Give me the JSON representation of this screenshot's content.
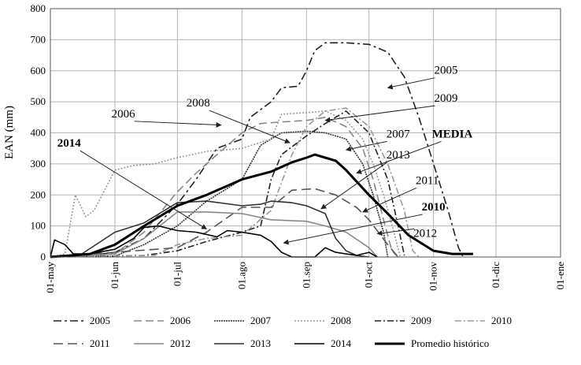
{
  "chart_data": {
    "type": "line",
    "title": "",
    "ylabel": "EAN (mm)",
    "xlabel": "",
    "ylim": [
      0,
      800
    ],
    "yticks": [
      0,
      100,
      200,
      300,
      400,
      500,
      600,
      700,
      800
    ],
    "xlim": [
      "2014-05-01",
      "2015-01-01"
    ],
    "xticks": [
      "01-may",
      "01-jun",
      "01-jul",
      "01.ago",
      "01.sep",
      "01-oct",
      "01-nov",
      "01-dic",
      "01-ene"
    ],
    "grid": true,
    "legend_position": "bottom",
    "series": [
      {
        "name": "2005",
        "color": "#222222",
        "dash": "10,4,3,4",
        "points": [
          [
            "2014-05-01",
            2
          ],
          [
            "2014-05-20",
            5
          ],
          [
            "2014-06-01",
            15
          ],
          [
            "2014-06-15",
            60
          ],
          [
            "2014-07-01",
            170
          ],
          [
            "2014-07-10",
            250
          ],
          [
            "2014-07-20",
            350
          ],
          [
            "2014-08-01",
            380
          ],
          [
            "2014-08-05",
            450
          ],
          [
            "2014-08-15",
            500
          ],
          [
            "2014-08-20",
            545
          ],
          [
            "2014-08-28",
            550
          ],
          [
            "2014-09-01",
            600
          ],
          [
            "2014-09-05",
            665
          ],
          [
            "2014-09-10",
            690
          ],
          [
            "2014-09-20",
            690
          ],
          [
            "2014-10-01",
            685
          ],
          [
            "2014-10-10",
            660
          ],
          [
            "2014-10-18",
            580
          ],
          [
            "2014-10-25",
            450
          ],
          [
            "2014-11-01",
            300
          ],
          [
            "2014-11-08",
            150
          ],
          [
            "2014-11-13",
            30
          ],
          [
            "2014-11-15",
            3
          ]
        ]
      },
      {
        "name": "2006",
        "color": "#888888",
        "dash": "10,5",
        "points": [
          [
            "2014-05-01",
            2
          ],
          [
            "2014-05-20",
            3
          ],
          [
            "2014-06-01",
            10
          ],
          [
            "2014-06-15",
            80
          ],
          [
            "2014-07-01",
            210
          ],
          [
            "2014-07-10",
            270
          ],
          [
            "2014-07-20",
            330
          ],
          [
            "2014-08-01",
            400
          ],
          [
            "2014-08-10",
            430
          ],
          [
            "2014-08-20",
            435
          ],
          [
            "2014-09-01",
            440
          ],
          [
            "2014-09-10",
            450
          ],
          [
            "2014-09-20",
            420
          ],
          [
            "2014-09-28",
            350
          ],
          [
            "2014-10-03",
            250
          ],
          [
            "2014-10-08",
            120
          ],
          [
            "2014-10-12",
            20
          ],
          [
            "2014-10-15",
            0
          ]
        ]
      },
      {
        "name": "2007",
        "color": "#333333",
        "dash": "2,1",
        "points": [
          [
            "2014-05-01",
            0
          ],
          [
            "2014-06-01",
            3
          ],
          [
            "2014-06-15",
            40
          ],
          [
            "2014-07-01",
            100
          ],
          [
            "2014-07-15",
            180
          ],
          [
            "2014-08-01",
            250
          ],
          [
            "2014-08-10",
            360
          ],
          [
            "2014-08-20",
            400
          ],
          [
            "2014-09-01",
            405
          ],
          [
            "2014-09-10",
            400
          ],
          [
            "2014-09-20",
            380
          ],
          [
            "2014-09-28",
            300
          ],
          [
            "2014-10-03",
            200
          ],
          [
            "2014-10-08",
            80
          ],
          [
            "2014-10-10",
            0
          ]
        ]
      },
      {
        "name": "2008",
        "color": "#999999",
        "dash": "2,2",
        "points": [
          [
            "2014-05-01",
            0
          ],
          [
            "2014-05-08",
            10
          ],
          [
            "2014-05-13",
            200
          ],
          [
            "2014-05-18",
            130
          ],
          [
            "2014-05-22",
            150
          ],
          [
            "2014-06-01",
            280
          ],
          [
            "2014-06-10",
            295
          ],
          [
            "2014-06-20",
            300
          ],
          [
            "2014-07-01",
            320
          ],
          [
            "2014-07-15",
            340
          ],
          [
            "2014-08-01",
            350
          ],
          [
            "2014-08-15",
            380
          ],
          [
            "2014-08-20",
            460
          ],
          [
            "2014-09-01",
            465
          ],
          [
            "2014-09-10",
            470
          ],
          [
            "2014-09-20",
            440
          ],
          [
            "2014-09-28",
            380
          ],
          [
            "2014-10-03",
            300
          ],
          [
            "2014-10-08",
            200
          ],
          [
            "2014-10-13",
            80
          ],
          [
            "2014-10-16",
            0
          ]
        ]
      },
      {
        "name": "2009",
        "color": "#222222",
        "dash": "8,3,2,3",
        "points": [
          [
            "2014-05-01",
            0
          ],
          [
            "2014-06-15",
            5
          ],
          [
            "2014-07-01",
            20
          ],
          [
            "2014-07-15",
            50
          ],
          [
            "2014-08-01",
            80
          ],
          [
            "2014-08-10",
            100
          ],
          [
            "2014-08-15",
            250
          ],
          [
            "2014-08-20",
            330
          ],
          [
            "2014-09-01",
            390
          ],
          [
            "2014-09-10",
            430
          ],
          [
            "2014-09-20",
            470
          ],
          [
            "2014-10-01",
            400
          ],
          [
            "2014-10-10",
            250
          ],
          [
            "2014-10-15",
            100
          ],
          [
            "2014-10-18",
            5
          ]
        ]
      },
      {
        "name": "2010",
        "color": "#999999",
        "dash": "8,3,2,3",
        "points": [
          [
            "2014-05-01",
            0
          ],
          [
            "2014-06-20",
            5
          ],
          [
            "2014-07-01",
            40
          ],
          [
            "2014-07-15",
            60
          ],
          [
            "2014-08-01",
            70
          ],
          [
            "2014-08-15",
            150
          ],
          [
            "2014-08-25",
            330
          ],
          [
            "2014-09-01",
            420
          ],
          [
            "2014-09-10",
            470
          ],
          [
            "2014-09-20",
            480
          ],
          [
            "2014-10-01",
            420
          ],
          [
            "2014-10-10",
            300
          ],
          [
            "2014-10-18",
            150
          ],
          [
            "2014-10-22",
            20
          ],
          [
            "2014-10-25",
            0
          ]
        ]
      },
      {
        "name": "2011",
        "color": "#555555",
        "dash": "12,6",
        "points": [
          [
            "2014-05-01",
            0
          ],
          [
            "2014-07-01",
            30
          ],
          [
            "2014-07-15",
            80
          ],
          [
            "2014-08-01",
            160
          ],
          [
            "2014-08-15",
            160
          ],
          [
            "2014-08-25",
            215
          ],
          [
            "2014-09-05",
            220
          ],
          [
            "2014-09-15",
            200
          ],
          [
            "2014-09-25",
            160
          ],
          [
            "2014-10-01",
            120
          ],
          [
            "2014-10-10",
            40
          ],
          [
            "2014-10-15",
            0
          ]
        ]
      },
      {
        "name": "2012",
        "color": "#888888",
        "dash": "",
        "points": [
          [
            "2014-05-01",
            0
          ],
          [
            "2014-06-01",
            10
          ],
          [
            "2014-06-15",
            60
          ],
          [
            "2014-07-01",
            145
          ],
          [
            "2014-07-15",
            145
          ],
          [
            "2014-08-01",
            140
          ],
          [
            "2014-08-15",
            120
          ],
          [
            "2014-09-01",
            115
          ],
          [
            "2014-09-10",
            100
          ],
          [
            "2014-09-20",
            80
          ],
          [
            "2014-10-01",
            30
          ],
          [
            "2014-10-05",
            0
          ]
        ]
      },
      {
        "name": "2013",
        "color": "#333333",
        "dash": "",
        "points": [
          [
            "2014-05-01",
            0
          ],
          [
            "2014-05-15",
            5
          ],
          [
            "2014-06-01",
            80
          ],
          [
            "2014-06-15",
            110
          ],
          [
            "2014-07-01",
            175
          ],
          [
            "2014-07-15",
            180
          ],
          [
            "2014-08-01",
            165
          ],
          [
            "2014-08-10",
            170
          ],
          [
            "2014-08-15",
            180
          ],
          [
            "2014-08-25",
            175
          ],
          [
            "2014-09-01",
            165
          ],
          [
            "2014-09-10",
            140
          ],
          [
            "2014-09-15",
            60
          ],
          [
            "2014-09-20",
            20
          ],
          [
            "2014-09-25",
            5
          ],
          [
            "2014-10-01",
            0
          ]
        ]
      },
      {
        "name": "2014",
        "color": "#000000",
        "dash": "",
        "points": [
          [
            "2014-05-01",
            0
          ],
          [
            "2014-05-03",
            55
          ],
          [
            "2014-05-08",
            40
          ],
          [
            "2014-05-12",
            10
          ],
          [
            "2014-05-20",
            10
          ],
          [
            "2014-06-01",
            25
          ],
          [
            "2014-06-10",
            60
          ],
          [
            "2014-06-15",
            95
          ],
          [
            "2014-06-22",
            100
          ],
          [
            "2014-07-01",
            85
          ],
          [
            "2014-07-10",
            80
          ],
          [
            "2014-07-20",
            65
          ],
          [
            "2014-07-25",
            85
          ],
          [
            "2014-08-01",
            80
          ],
          [
            "2014-08-10",
            70
          ],
          [
            "2014-08-15",
            50
          ],
          [
            "2014-08-20",
            15
          ],
          [
            "2014-08-25",
            0
          ],
          [
            "2014-09-05",
            0
          ],
          [
            "2014-09-10",
            30
          ],
          [
            "2014-09-15",
            15
          ],
          [
            "2014-09-25",
            5
          ],
          [
            "2014-10-01",
            15
          ],
          [
            "2014-10-05",
            0
          ]
        ]
      },
      {
        "name": "Promedio histórico",
        "color": "#000000",
        "dash": "",
        "bold": true,
        "points": [
          [
            "2014-05-01",
            0
          ],
          [
            "2014-05-20",
            10
          ],
          [
            "2014-06-01",
            40
          ],
          [
            "2014-06-15",
            100
          ],
          [
            "2014-07-01",
            165
          ],
          [
            "2014-07-15",
            200
          ],
          [
            "2014-08-01",
            250
          ],
          [
            "2014-08-15",
            275
          ],
          [
            "2014-08-25",
            305
          ],
          [
            "2014-09-01",
            320
          ],
          [
            "2014-09-05",
            330
          ],
          [
            "2014-09-10",
            320
          ],
          [
            "2014-09-15",
            310
          ],
          [
            "2014-09-20",
            280
          ],
          [
            "2014-10-01",
            200
          ],
          [
            "2014-10-10",
            140
          ],
          [
            "2014-10-20",
            70
          ],
          [
            "2014-11-01",
            20
          ],
          [
            "2014-11-10",
            10
          ],
          [
            "2014-11-20",
            10
          ]
        ]
      }
    ],
    "annotations": [
      {
        "text": "2005",
        "bold": false,
        "label_at": [
          "2014-11-07",
          590
        ],
        "arrow_to": [
          "2014-10-10",
          545
        ]
      },
      {
        "text": "2009",
        "bold": false,
        "label_at": [
          "2014-11-07",
          500
        ],
        "arrow_to": [
          "2014-09-10",
          440
        ]
      },
      {
        "text": "2008",
        "bold": false,
        "label_at": [
          "2014-07-11",
          485
        ],
        "arrow_to": [
          "2014-08-24",
          368
        ]
      },
      {
        "text": "2006",
        "bold": false,
        "label_at": [
          "2014-06-05",
          450
        ],
        "arrow_to": [
          "2014-07-22",
          425
        ]
      },
      {
        "text": "2007",
        "bold": false,
        "label_at": [
          "2014-10-15",
          385
        ],
        "arrow_to": [
          "2014-09-20",
          345
        ]
      },
      {
        "text": "MEDIA",
        "bold": true,
        "label_at": [
          "2014-11-10",
          385
        ],
        "arrow_to": [
          "2014-09-25",
          270
        ]
      },
      {
        "text": "2014",
        "bold": true,
        "label_at": [
          "2014-05-10",
          355
        ],
        "arrow_to": [
          "2014-07-15",
          90
        ]
      },
      {
        "text": "2013",
        "bold": false,
        "label_at": [
          "2014-10-15",
          318
        ],
        "arrow_to": [
          "2014-09-08",
          155
        ]
      },
      {
        "text": "2011",
        "bold": false,
        "label_at": [
          "2014-10-29",
          235
        ],
        "arrow_to": [
          "2014-09-28",
          145
        ]
      },
      {
        "text": "2010",
        "bold": true,
        "label_at": [
          "2014-11-01",
          150
        ],
        "arrow_to": [
          "2014-08-21",
          45
        ]
      },
      {
        "text": "2012",
        "bold": false,
        "label_at": [
          "2014-10-28",
          65
        ],
        "arrow_to": [
          "2014-10-05",
          75
        ]
      }
    ]
  }
}
